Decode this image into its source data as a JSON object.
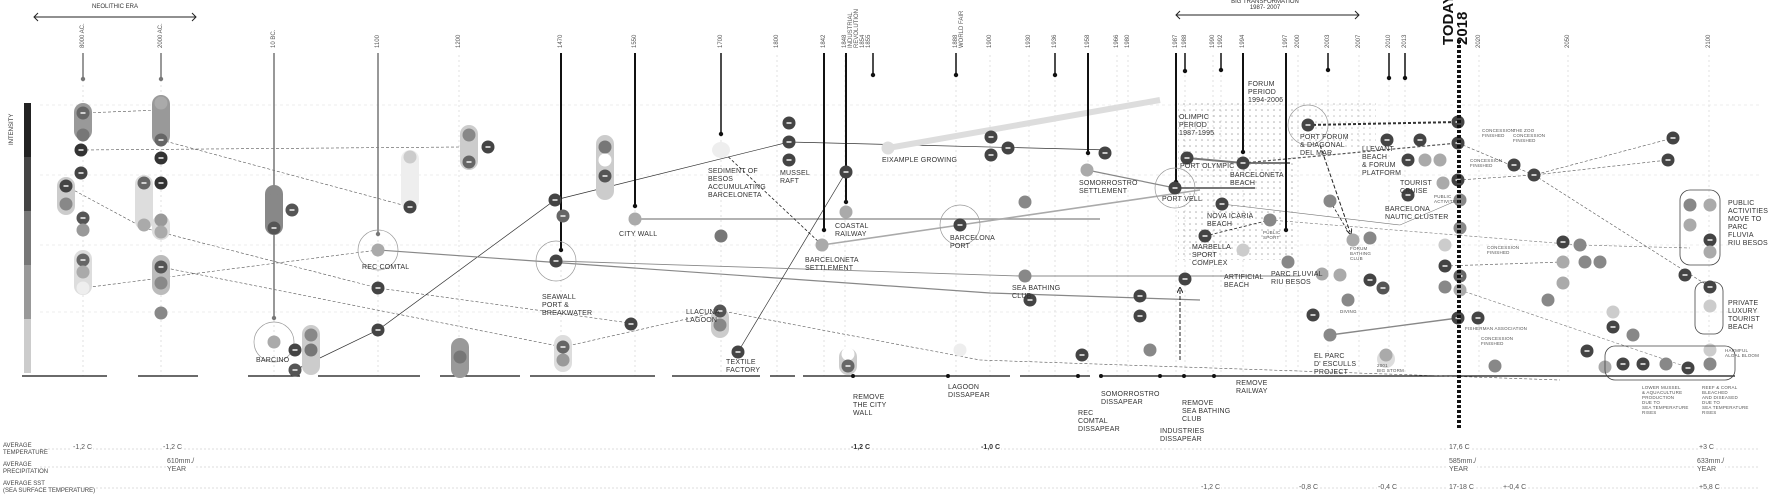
{
  "header": {
    "neolithic_era": "NEOLITHIC ERA",
    "big_transformation": "BIG TRANSFORMATION\n1987- 2007",
    "today": "TODAY\n2018",
    "intensity": "INTENSITY"
  },
  "years": [
    "8000 AC.",
    "2000 AC.",
    "10 BC.",
    "1100",
    "1200",
    "1470",
    "1550",
    "1700",
    "1800",
    "1842",
    "1848\nINDUSTRIAL\nREVOLUTION\n1854\n1855",
    "1888\nWORLD FAIR",
    "1900",
    "1930",
    "1936",
    "1958",
    "1966",
    "1980",
    "1987",
    "1988",
    "1990",
    "1992",
    "1994",
    "1997",
    "2000",
    "2003",
    "2007",
    "2010",
    "2013",
    "2020",
    "2050",
    "2100"
  ],
  "events": {
    "barcino": "BARCINO",
    "rec_comtal": "REC COMTAL",
    "seawall": "SEAWALL\nPORT &\nBREAKWATER",
    "city_wall": "CITY WALL",
    "llacuna": "LLACUNA\nLAGOON",
    "textile": "TEXTILE\nFACTORY",
    "sediment": "SEDIMENT OF\nBESOS\nACCUMULATING\nBARCELONETA",
    "mussel_raft": "MUSSEL\nRAFT",
    "coastal_railway": "COASTAL\nRAILWAY",
    "barceloneta_settlement": "BARCELONETA\nSETTLEMENT",
    "eixample": "EIXAMPLE GROWING",
    "barcelona_port": "BARCELONA\nPORT",
    "somorrostro_settlement": "SOMORROSTRO\nSETTLEMENT",
    "sea_bathing_club": "SEA BATHING\nCLUB",
    "olympic_period": "OLIMPIC\nPERIOD\n1987-1995",
    "forum_period": "FORUM\nPERIOD\n1994-2006",
    "port_olympic": "PORT OLYMPIC",
    "barceloneta_beach": "BARCELONETA\nBEACH",
    "port_vell": "PORT VELL",
    "nova_icaria": "NOVA ICARIA\nBEACH",
    "public_sport": "PUBLIC\nSPORT",
    "marbella": "MARBELLA\nSPORT\nCOMPLEX",
    "artificial_beach": "ARTIFICIAL\nBEACH",
    "port_forum": "PORT FORUM\n& DIAGONAL\nDEL MAR",
    "llevant": "LLEVANT\nBEACH\n& FORUM\nPLATFORM",
    "forum_bathing": "FORUM\nBATHING\nCLUB",
    "parc_fluvial": "PARC FLUVIAL\nRIU BESOS",
    "diving": "DIVING",
    "tourist_cruise": "TOURIST\nCRUISE",
    "nautic_cluster": "BARCELONA\nNAUTIC CLUSTER",
    "public_activities": "PUBLIC\nACTIVITIES",
    "el_parc": "EL PARC\nD' ESCULLS\nPROJECT",
    "big_storm": "2001\nBIG STORM",
    "concession_1": "CONCESSION\nFINISHED",
    "zoo_concession": "THE ZOO\nCONCESSION\nFINISHED",
    "concession_2": "CONCESSION\nFINISHED",
    "concession_3": "CONCESSION\nFINISHED",
    "concession_4": "CONCESSION\nFINISHED",
    "fisherman": "FISHERMAN ASSOCIATION",
    "public_move": "PUBLIC\nACTIVITIES\nMOVE TO\nPARC FLUVIA\nRIU BESOS",
    "private_beach": "PRIVATE\nLUXURY\nTOURIST\nBEACH",
    "algal_bloom": "HARMFUL\nALGAL BLOOM",
    "lower_mussel": "LOWER MUSSEL\n& AQUACULTURE\nPRODUCTION\nDUE TO\nSEA TEMPERATURE\nRISES",
    "reef_coral": "REEF & CORAL\nBLEACHED\nAND DISEASED\nDUE TO\nSEA TEMPERATURE\nRISES"
  },
  "removals": {
    "city_wall": "REMOVE\nTHE CITY\nWALL",
    "lagoon": "LAGOON\nDISSAPEAR",
    "rec_comtal": "REC\nCOMTAL\nDISSAPEAR",
    "somorrostro": "SOMORROSTRO\nDISSAPEAR",
    "industries": "INDUSTRIES\nDISSAPEAR",
    "sea_bathing": "REMOVE\nSEA BATHING\nCLUB",
    "railway": "REMOVE\nRAILWAY"
  },
  "climate": {
    "rows": {
      "temperature": "AVERAGE\nTEMPERATURE",
      "precipitation": "AVERAGE\nPRECIPITATION",
      "sst": "AVERAGE SST\n(SEA SURFACE TEMPERATURE)"
    },
    "temperature": [
      "-1,2 C",
      "-1,2 C",
      "-1,2 C",
      "-1,0 C",
      "17,6 C",
      "+3 C"
    ],
    "precipitation": [
      "610mm./\nYEAR",
      "585mm./\nYEAR",
      "633mm./\nYEAR"
    ],
    "sst": [
      "-1,2 C",
      "-0,8 C",
      "-0,4 C",
      "17-18 C",
      "+-0,4 C",
      "+5,8 C"
    ]
  },
  "colors": {
    "ink": "#222222",
    "mid": "#777777",
    "light": "#bbbbbb"
  }
}
